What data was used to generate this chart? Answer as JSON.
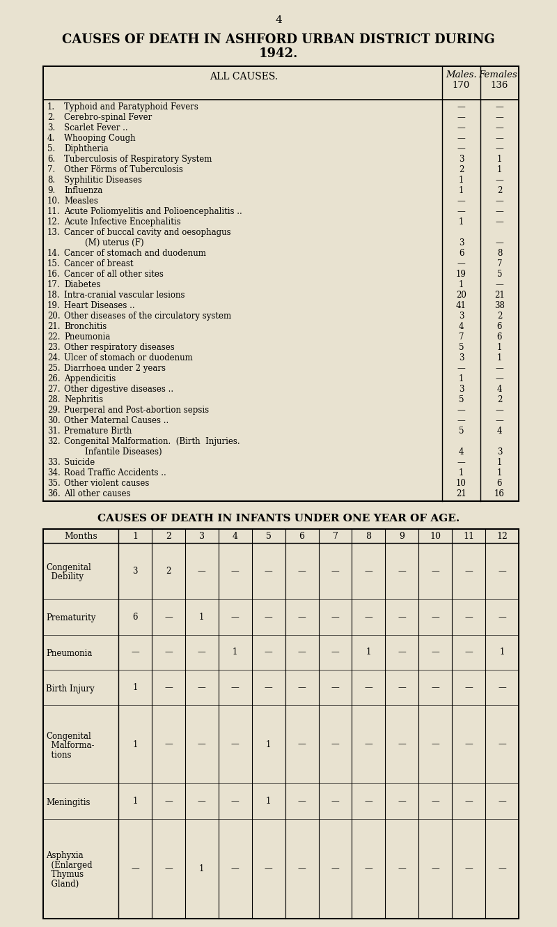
{
  "page_number": "4",
  "title_line1": "CAUSES OF DEATH IN ASHFORD URBAN DISTRICT DURING",
  "title_line2": "1942.",
  "bg_color": "#e8e2d0",
  "rows": [
    {
      "num": "1.",
      "label": "Typhoid and Paratyphoid Fevers",
      "extra": "..",
      "m": "—",
      "f": "—"
    },
    {
      "num": "2.",
      "label": "Cerebro-spinal Fever",
      "extra": "  ..  ..",
      "m": "—",
      "f": "—"
    },
    {
      "num": "3.",
      "label": "Scarlet Fever ..",
      "extra": "  ..  ..",
      "m": "—",
      "f": "—"
    },
    {
      "num": "4.",
      "label": "Whooping Cough",
      "extra": "  ..  ..",
      "m": "—",
      "f": "—"
    },
    {
      "num": "5.",
      "label": "Diphtheria",
      "extra": "  ..  ..",
      "m": "—",
      "f": "—"
    },
    {
      "num": "6.",
      "label": "Tuberculosis of Respiratory System",
      "extra": "..",
      "m": "3",
      "f": "1"
    },
    {
      "num": "7.",
      "label": "Other Förms of Tuberculosis",
      "extra": "..",
      "m": "2",
      "f": "1"
    },
    {
      "num": "8.",
      "label": "Syphilitic Diseases",
      "extra": "  ..  ..",
      "m": "1",
      "f": "—"
    },
    {
      "num": "9.",
      "label": "Influenza",
      "extra": "  ..  ..  ..",
      "m": "1",
      "f": "2"
    },
    {
      "num": "10.",
      "label": "Measles",
      "extra": "  ..  ..  ..",
      "m": "—",
      "f": "—"
    },
    {
      "num": "11.",
      "label": "Acute Poliomyelitis and Polioencephalitis ..",
      "extra": "",
      "m": "—",
      "f": "—"
    },
    {
      "num": "12.",
      "label": "Acute Infective Encephalitis",
      "extra": "  ..",
      "m": "1",
      "f": "—"
    },
    {
      "num": "13.",
      "label": "Cancer of buccal cavity and oesophagus",
      "extra": "",
      "m": "",
      "f": "",
      "cont": true
    },
    {
      "num": "",
      "label": "        (M) uterus (F)",
      "extra": "  ..  ..",
      "m": "3",
      "f": "—"
    },
    {
      "num": "14.",
      "label": "Cancer of stomach and duodenum",
      "extra": "..",
      "m": "6",
      "f": "8"
    },
    {
      "num": "15.",
      "label": "Cancer of breast",
      "extra": "  ..  ..",
      "m": "—",
      "f": "7"
    },
    {
      "num": "16.",
      "label": "Cancer of all other sites",
      "extra": "  ..",
      "m": "19",
      "f": "5"
    },
    {
      "num": "17.",
      "label": "Diabetes",
      "extra": "  ..  ..  ..",
      "m": "1",
      "f": "—"
    },
    {
      "num": "18.",
      "label": "Intra-cranial vascular lesions",
      "extra": "  ..",
      "m": "20",
      "f": "21"
    },
    {
      "num": "19.",
      "label": "Heart Diseases ..",
      "extra": "  ..  ..",
      "m": "41",
      "f": "38"
    },
    {
      "num": "20.",
      "label": "Other diseases of the circulatory system",
      "extra": "..",
      "m": "3",
      "f": "2"
    },
    {
      "num": "21.",
      "label": "Bronchitis",
      "extra": "  ..  ..  ..",
      "m": "4",
      "f": "6"
    },
    {
      "num": "22.",
      "label": "Pneumonia",
      "extra": "  ..  ... ....",
      "m": "7",
      "f": "6"
    },
    {
      "num": "23.",
      "label": "Other respiratory diseases",
      "extra": "  ..",
      "m": "5",
      "f": "1"
    },
    {
      "num": "24.",
      "label": "Ulcer of stomach or duodenum",
      "extra": "  ..",
      "m": "3",
      "f": "1"
    },
    {
      "num": "25.",
      "label": "Diarrhoea under 2 years",
      "extra": "  ..",
      "m": "—",
      "f": "—"
    },
    {
      "num": "26.",
      "label": "Appendicitis",
      "extra": "  ..  ..",
      "m": "1",
      "f": "—"
    },
    {
      "num": "27.",
      "label": "Other digestive diseases ..",
      "extra": "  ..",
      "m": "3",
      "f": "4"
    },
    {
      "num": "28.",
      "label": "Nephritis",
      "extra": "  ..  ..",
      "m": "5",
      "f": "2"
    },
    {
      "num": "29.",
      "label": "Puerperal and Post-abortion sepsis",
      "extra": "..",
      "m": "—",
      "f": "—"
    },
    {
      "num": "30.",
      "label": "Other Maternal Causes ..",
      "extra": "  ..",
      "m": "—",
      "f": "—"
    },
    {
      "num": "31.",
      "label": "Premature Birth",
      "extra": "  ..  ..",
      "m": "5",
      "f": "4"
    },
    {
      "num": "32.",
      "label": "Congenital Malformation.  (Birth  Injuries.",
      "extra": "",
      "m": "",
      "f": "",
      "cont": true
    },
    {
      "num": "",
      "label": "        Infantile Diseases)",
      "extra": "  ..  ..",
      "m": "4",
      "f": "3"
    },
    {
      "num": "33.",
      "label": "Suicide",
      "extra": "  ..  ..  ..",
      "m": "—",
      "f": "1"
    },
    {
      "num": "34.",
      "label": "Road Traffic Accidents ..",
      "extra": "  ..",
      "m": "1",
      "f": "1"
    },
    {
      "num": "35.",
      "label": "Other violent causes",
      "extra": "  ..  ..",
      "m": "10",
      "f": "6"
    },
    {
      "num": "36.",
      "label": "All other causes",
      "extra": "  ..  ..",
      "m": "21",
      "f": "16"
    }
  ],
  "table2_title": "CAUSES OF DEATH IN INFANTS UNDER ONE YEAR OF AGE.",
  "table2_months": [
    "Months",
    "1",
    "2",
    "3",
    "4",
    "5",
    "6",
    "7",
    "8",
    "9",
    "10",
    "11",
    "12"
  ],
  "table2_rows": [
    {
      "label_lines": [
        "Congenital",
        "  Debility"
      ],
      "vals": [
        "3",
        "2",
        "—",
        "—",
        "—",
        "—",
        "—",
        "—",
        "—",
        "—",
        "—",
        "—"
      ]
    },
    {
      "label_lines": [
        "Prematurity"
      ],
      "vals": [
        "6",
        "—",
        "1",
        "—",
        "—",
        "—",
        "—",
        "—",
        "—",
        "—",
        "—",
        "—"
      ]
    },
    {
      "label_lines": [
        "Pneumonia"
      ],
      "vals": [
        "—",
        "—",
        "—",
        "1",
        "—",
        "—",
        "—",
        "1",
        "—",
        "—",
        "—",
        "1"
      ]
    },
    {
      "label_lines": [
        "Birth Injury"
      ],
      "vals": [
        "1",
        "—",
        "—",
        "—",
        "—",
        "—",
        "—",
        "—",
        "—",
        "—",
        "—",
        "—"
      ]
    },
    {
      "label_lines": [
        "Congenital",
        "  Malforma-",
        "  tions"
      ],
      "vals": [
        "1",
        "—",
        "—",
        "—",
        "1",
        "—",
        "—",
        "—",
        "—",
        "—",
        "—",
        "—"
      ]
    },
    {
      "label_lines": [
        "Meningitis"
      ],
      "vals": [
        "1",
        "—",
        "—",
        "—",
        "1",
        "—",
        "—",
        "—",
        "—",
        "—",
        "—",
        "—"
      ]
    },
    {
      "label_lines": [
        "Asphyxia",
        "  (Enlarged",
        "  Thymus",
        "  Gland)"
      ],
      "vals": [
        "—",
        "—",
        "1",
        "—",
        "—",
        "—",
        "—",
        "—",
        "—",
        "—",
        "—",
        "—"
      ]
    }
  ]
}
